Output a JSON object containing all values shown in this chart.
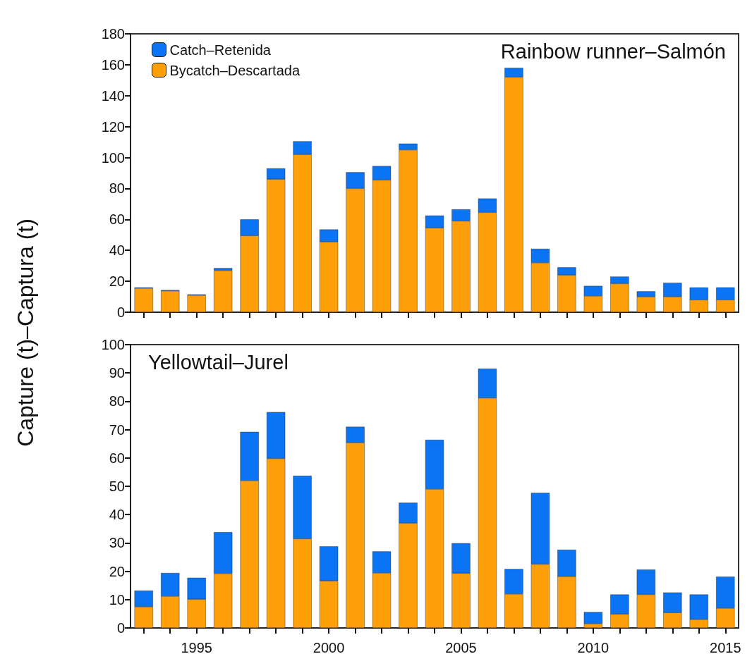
{
  "chart_data": [
    {
      "type": "bar",
      "title": "Rainbow runner–Salmón",
      "ylabel": "Capture (t)–Captura (t)",
      "stacked": true,
      "legend": "top left",
      "grid": false,
      "tick_labels": "y",
      "categories": [
        null,
        null,
        "1995",
        null,
        null,
        null,
        null,
        "2000",
        null,
        null,
        null,
        null,
        "2005",
        null,
        null,
        null,
        null,
        "2010",
        null,
        null,
        null,
        null,
        "2015"
      ],
      "ylim": [
        0,
        180
      ],
      "yticks": [
        0,
        20,
        40,
        60,
        80,
        100,
        120,
        140,
        160,
        180
      ],
      "series": [
        {
          "name": "Bycatch–Descartada",
          "color": "#ffa00a",
          "values": [
            15.5,
            13.8,
            11,
            27,
            49.5,
            86,
            102,
            45.5,
            80,
            85.5,
            105,
            54.5,
            59,
            64.5,
            152,
            32,
            24,
            10.5,
            18.5,
            10,
            10,
            8,
            8
          ]
        },
        {
          "name": "Catch–Retenida",
          "color": "#0a74f5",
          "values": [
            0.5,
            0.5,
            0.5,
            1.5,
            10.5,
            7,
            8.5,
            8,
            10.5,
            9,
            4,
            8,
            7.5,
            9,
            6,
            9,
            5,
            6.5,
            4.5,
            3.5,
            9,
            8,
            8
          ]
        }
      ]
    },
    {
      "type": "bar",
      "title": "Yellowtail–Jurel",
      "stacked": true,
      "grid": false,
      "categories": [
        null,
        null,
        "1995",
        null,
        null,
        null,
        null,
        "2000",
        null,
        null,
        null,
        null,
        "2005",
        null,
        null,
        null,
        null,
        "2010",
        null,
        null,
        null,
        null,
        "2015"
      ],
      "ylim": [
        0,
        100
      ],
      "yticks": [
        0,
        10,
        20,
        30,
        40,
        50,
        60,
        70,
        80,
        90,
        100
      ],
      "series": [
        {
          "color": "#ffa00a",
          "values": [
            7.5,
            11.2,
            10.1,
            19.2,
            52,
            59.8,
            31.5,
            16.6,
            65.4,
            19.4,
            37,
            49,
            19.3,
            81.2,
            12,
            22.5,
            18.2,
            1.5,
            4.9,
            11.8,
            5.4,
            3,
            7
          ]
        },
        {
          "color": "#0a74f5",
          "values": [
            5.7,
            8.2,
            7.6,
            14.6,
            17.2,
            16.4,
            22.2,
            12.2,
            5.6,
            7.6,
            7.2,
            17.4,
            10.6,
            10.3,
            8.8,
            25.2,
            9.4,
            4.1,
            6.9,
            8.8,
            7.1,
            8.8,
            11.1
          ]
        }
      ]
    }
  ]
}
